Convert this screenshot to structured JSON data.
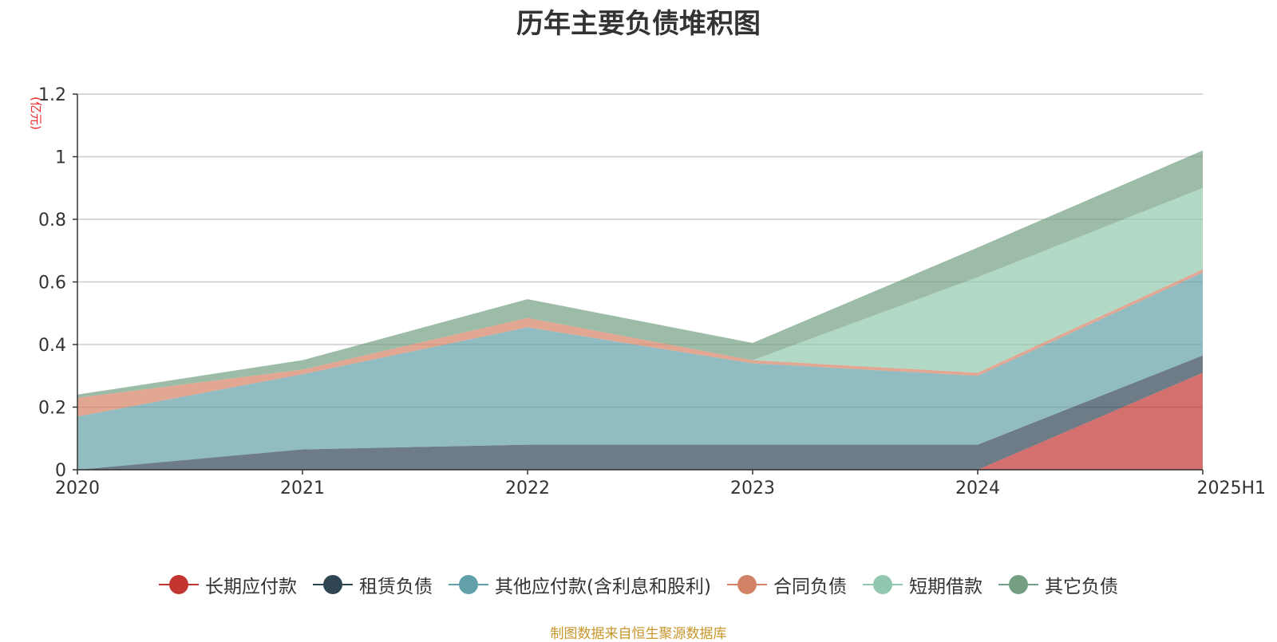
{
  "chart_data": {
    "type": "area",
    "stacked": true,
    "title": "历年主要负债堆积图",
    "ylabel": "亿元",
    "ylabel_display": "(亿元)",
    "categories": [
      "2020",
      "2021",
      "2022",
      "2023",
      "2024",
      "2025H1"
    ],
    "y_ticks": [
      "0",
      "0.2",
      "0.4",
      "0.6",
      "0.8",
      "1",
      "1.2"
    ],
    "ylim": [
      0,
      1.2
    ],
    "grid": true,
    "legend_position": "bottom",
    "series": [
      {
        "name": "长期应付款",
        "color": "#c23531",
        "values": [
          0,
          0,
          0,
          0,
          0,
          0.31
        ]
      },
      {
        "name": "租赁负债",
        "color": "#2f4554",
        "values": [
          0,
          0.065,
          0.08,
          0.08,
          0.08,
          0.055
        ]
      },
      {
        "name": "其他应付款(含利息和股利)",
        "color": "#61a0a8",
        "values": [
          0.17,
          0.24,
          0.375,
          0.26,
          0.22,
          0.265
        ]
      },
      {
        "name": "合同负债",
        "color": "#d48265",
        "values": [
          0.06,
          0.015,
          0.03,
          0.01,
          0.01,
          0.01
        ]
      },
      {
        "name": "短期借款",
        "color": "#91c7ae",
        "values": [
          0,
          0,
          0,
          0,
          0.305,
          0.26
        ]
      },
      {
        "name": "其它负债",
        "color": "#749f83",
        "values": [
          0.01,
          0.03,
          0.06,
          0.055,
          0.095,
          0.12
        ]
      }
    ]
  },
  "source_note": "制图数据来自恒生聚源数据库"
}
